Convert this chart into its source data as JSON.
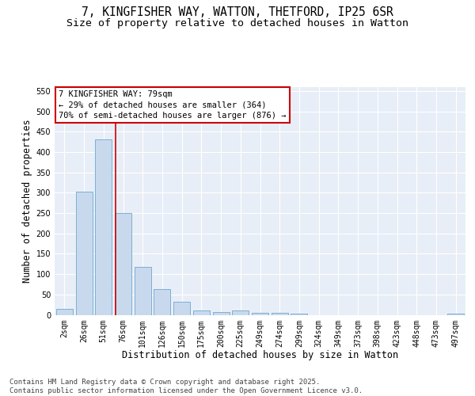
{
  "title_line1": "7, KINGFISHER WAY, WATTON, THETFORD, IP25 6SR",
  "title_line2": "Size of property relative to detached houses in Watton",
  "xlabel": "Distribution of detached houses by size in Watton",
  "ylabel": "Number of detached properties",
  "categories": [
    "2sqm",
    "26sqm",
    "51sqm",
    "76sqm",
    "101sqm",
    "126sqm",
    "150sqm",
    "175sqm",
    "200sqm",
    "225sqm",
    "249sqm",
    "274sqm",
    "299sqm",
    "324sqm",
    "349sqm",
    "373sqm",
    "398sqm",
    "423sqm",
    "448sqm",
    "473sqm",
    "497sqm"
  ],
  "values": [
    15,
    302,
    432,
    250,
    117,
    64,
    33,
    10,
    7,
    10,
    5,
    4,
    2,
    0,
    0,
    0,
    0,
    0,
    0,
    0,
    3
  ],
  "bar_color": "#c9d9ed",
  "bar_edge_color": "#7bafd4",
  "background_color": "#e8eef7",
  "vline_x": 2.6,
  "vline_color": "#cc0000",
  "annotation_text": "7 KINGFISHER WAY: 79sqm\n← 29% of detached houses are smaller (364)\n70% of semi-detached houses are larger (876) →",
  "box_edge_color": "#cc0000",
  "ylim": [
    0,
    560
  ],
  "yticks": [
    0,
    50,
    100,
    150,
    200,
    250,
    300,
    350,
    400,
    450,
    500,
    550
  ],
  "footer_text": "Contains HM Land Registry data © Crown copyright and database right 2025.\nContains public sector information licensed under the Open Government Licence v3.0.",
  "title_fontsize": 10.5,
  "subtitle_fontsize": 9.5,
  "axis_label_fontsize": 8.5,
  "tick_fontsize": 7,
  "annotation_fontsize": 7.5,
  "footer_fontsize": 6.5
}
